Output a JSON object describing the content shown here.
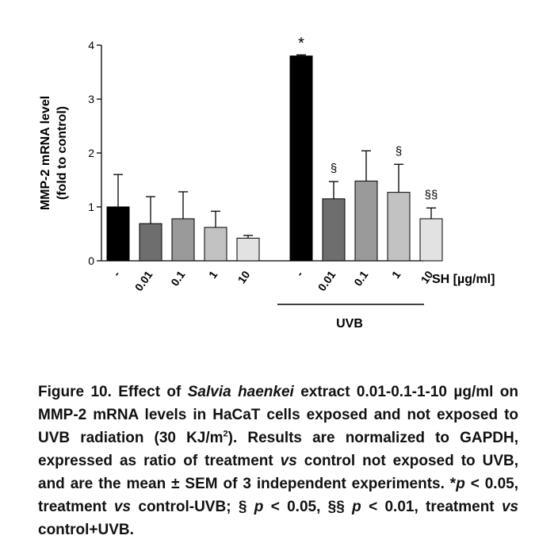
{
  "chart_data": {
    "type": "bar",
    "ylabel_line1": "MMP-2 mRNA level",
    "ylabel_line2": "(fold to control)",
    "ylim": [
      0,
      4
    ],
    "yticks": [
      "0",
      "1",
      "2",
      "3",
      "4"
    ],
    "xaxis_title": "SH [µg/ml]",
    "group_label": "UVB",
    "categories": [
      "-",
      "0.01",
      "0.1",
      "1",
      "10",
      "-",
      "0.01",
      "0.1",
      "1",
      "10"
    ],
    "values": [
      1.0,
      0.69,
      0.78,
      0.62,
      0.42,
      3.8,
      1.15,
      1.48,
      1.27,
      0.78
    ],
    "errors": [
      0.6,
      0.5,
      0.5,
      0.3,
      0.05,
      0.02,
      0.32,
      0.56,
      0.52,
      0.2
    ],
    "significance": [
      "",
      "",
      "",
      "",
      "",
      "*",
      "§",
      "",
      "§",
      "§§"
    ],
    "bar_colors": [
      "#000000",
      "#6e6e6e",
      "#9a9a9a",
      "#c2c2c2",
      "#e2e2e2",
      "#000000",
      "#6e6e6e",
      "#9a9a9a",
      "#c2c2c2",
      "#e2e2e2"
    ],
    "grid": false
  },
  "caption": {
    "fig_label": "Figure 10.",
    "title_a": "Effect of",
    "title_italic": "Salvia haenkei",
    "title_b": "extract 0.01-0.1-1-10 µg/ml on MMP-2 mRNA levels in HaCaT cells exposed and not exposed to UVB radiation (30 KJ/m",
    "title_sup": "2",
    "title_c": ").",
    "body_a": "Results are normalized to GAPDH, expressed as ratio of treatment",
    "vs1": "vs",
    "body_b": "control not exposed to UVB, and are the mean ± SEM of 3 independent experiments. *",
    "p1": "p",
    "body_c": "< 0.05, treatment",
    "vs2": "vs",
    "body_d": "control-UVB; §",
    "p2": "p",
    "body_e": "< 0.05, §§",
    "p3": "p",
    "body_f": "< 0.01, treatment",
    "vs3": "vs",
    "body_g": "control+UVB."
  }
}
